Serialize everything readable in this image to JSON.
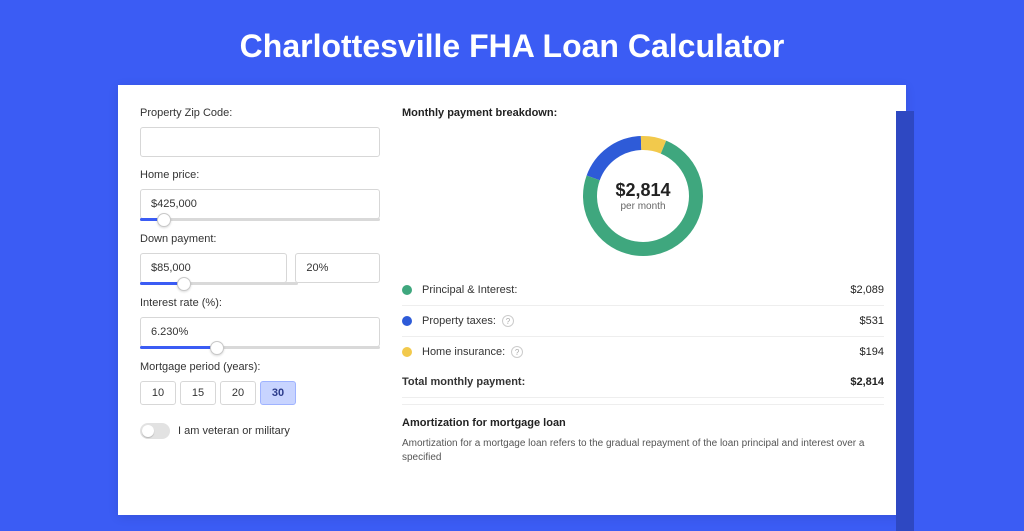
{
  "page": {
    "title": "Charlottesville FHA Loan Calculator",
    "background_color": "#3b5cf4",
    "panel_bg": "#ffffff"
  },
  "form": {
    "zip": {
      "label": "Property Zip Code:",
      "value": ""
    },
    "home_price": {
      "label": "Home price:",
      "value": "$425,000",
      "slider_fill_pct": 10,
      "slider_thumb_pct": 10
    },
    "down_payment": {
      "label": "Down payment:",
      "amount": "$85,000",
      "percent": "20%",
      "slider_fill_pct": 28,
      "slider_thumb_pct": 28
    },
    "interest_rate": {
      "label": "Interest rate (%):",
      "value": "6.230%",
      "slider_fill_pct": 32,
      "slider_thumb_pct": 32
    },
    "mortgage_period": {
      "label": "Mortgage period (years):",
      "options": [
        "10",
        "15",
        "20",
        "30"
      ],
      "selected": "30"
    },
    "veteran": {
      "label": "I am veteran or military",
      "checked": false
    }
  },
  "breakdown": {
    "title": "Monthly payment breakdown:",
    "donut": {
      "total_amount": "$2,814",
      "sub_label": "per month",
      "ring_width": 14,
      "radius": 60,
      "slices": [
        {
          "key": "pi",
          "value": 2089,
          "color": "#3fa77e"
        },
        {
          "key": "tax",
          "value": 531,
          "color": "#2e5bd8"
        },
        {
          "key": "ins",
          "value": 194,
          "color": "#f2c94c"
        }
      ],
      "background_color": "#ffffff"
    },
    "legend": [
      {
        "dot_color": "#3fa77e",
        "label": "Principal & Interest:",
        "help": false,
        "value": "$2,089"
      },
      {
        "dot_color": "#2e5bd8",
        "label": "Property taxes:",
        "help": true,
        "value": "$531"
      },
      {
        "dot_color": "#f2c94c",
        "label": "Home insurance:",
        "help": true,
        "value": "$194"
      }
    ],
    "total": {
      "label": "Total monthly payment:",
      "value": "$2,814"
    }
  },
  "amortization": {
    "title": "Amortization for mortgage loan",
    "text": "Amortization for a mortgage loan refers to the gradual repayment of the loan principal and interest over a specified"
  }
}
